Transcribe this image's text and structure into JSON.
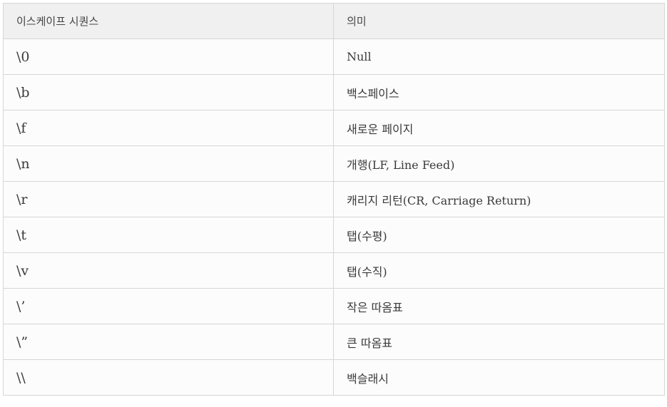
{
  "table": {
    "headers": [
      "이스케이프 시퀀스",
      "의미"
    ],
    "rows": [
      [
        "\\0",
        "Null"
      ],
      [
        "\\b",
        "백스페이스"
      ],
      [
        "\\f",
        "새로운 페이지"
      ],
      [
        "\\n",
        "개행(LF, Line Feed)"
      ],
      [
        "\\r",
        "캐리지 리턴(CR, Carriage Return)"
      ],
      [
        "\\t",
        "탭(수평)"
      ],
      [
        "\\v",
        "탭(수직)"
      ],
      [
        "\\’",
        "작은 따옴표"
      ],
      [
        "\\”",
        "큰 따옴표"
      ],
      [
        "\\\\",
        "백슬래시"
      ]
    ]
  }
}
